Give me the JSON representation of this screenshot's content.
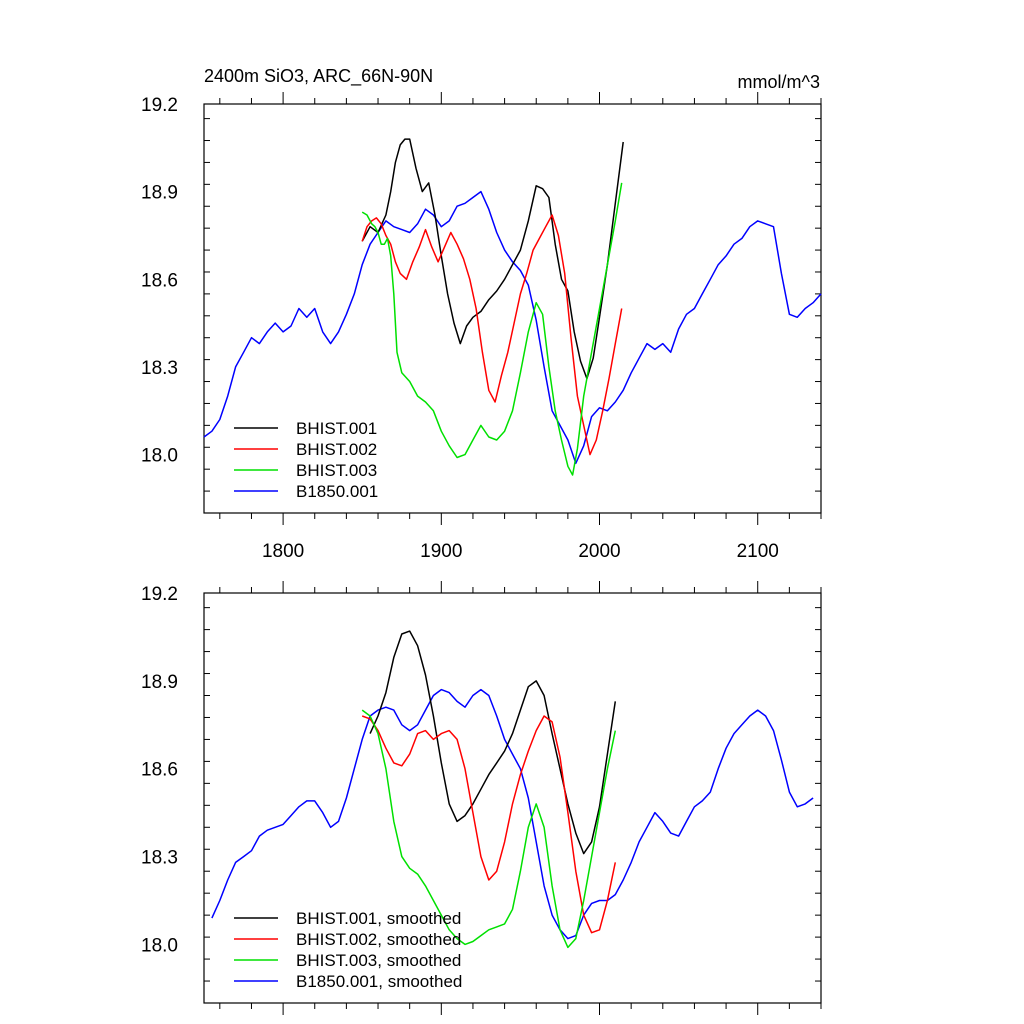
{
  "figure": {
    "title_left": "2400m SiO3, ARC_66N-90N",
    "title_right": "mmol/m^3"
  },
  "chart_data": [
    {
      "type": "line",
      "title": "2400m SiO3, ARC_66N-90N",
      "units": "mmol/m^3",
      "xlim": [
        1750,
        2140
      ],
      "ylim": [
        17.8,
        19.2
      ],
      "x_ticks": [
        1800,
        1900,
        2000,
        2100
      ],
      "x_tick_labels": [
        "1800",
        "1900",
        "2000",
        "2100"
      ],
      "y_ticks": [
        18.0,
        18.3,
        18.6,
        18.9,
        19.2
      ],
      "y_tick_labels": [
        "18.0",
        "18.3",
        "18.6",
        "18.9",
        "19.2"
      ],
      "legend_position": "bottom-left",
      "series": [
        {
          "name": "BHIST.001",
          "color": "#000000",
          "x": [
            1850,
            1855,
            1860,
            1865,
            1868,
            1871,
            1874,
            1877,
            1880,
            1884,
            1888,
            1892,
            1896,
            1900,
            1904,
            1908,
            1912,
            1916,
            1920,
            1925,
            1930,
            1935,
            1940,
            1945,
            1950,
            1955,
            1960,
            1964,
            1968,
            1972,
            1976,
            1980,
            1984,
            1988,
            1992,
            1996,
            2000,
            2005,
            2010,
            2015
          ],
          "y": [
            18.73,
            18.78,
            18.76,
            18.82,
            18.9,
            19.0,
            19.06,
            19.08,
            19.08,
            18.98,
            18.9,
            18.93,
            18.82,
            18.68,
            18.55,
            18.45,
            18.38,
            18.44,
            18.47,
            18.49,
            18.53,
            18.56,
            18.6,
            18.65,
            18.7,
            18.8,
            18.92,
            18.91,
            18.88,
            18.72,
            18.6,
            18.56,
            18.42,
            18.32,
            18.26,
            18.33,
            18.47,
            18.65,
            18.86,
            19.07
          ]
        },
        {
          "name": "BHIST.002",
          "color": "#ff0000",
          "x": [
            1850,
            1853,
            1856,
            1859,
            1862,
            1865,
            1868,
            1871,
            1874,
            1878,
            1882,
            1886,
            1890,
            1894,
            1898,
            1902,
            1906,
            1910,
            1914,
            1918,
            1922,
            1926,
            1930,
            1934,
            1938,
            1942,
            1946,
            1950,
            1954,
            1958,
            1962,
            1966,
            1970,
            1974,
            1978,
            1982,
            1986,
            1990,
            1994,
            1998,
            2002,
            2006,
            2010,
            2014
          ],
          "y": [
            18.73,
            18.78,
            18.8,
            18.81,
            18.79,
            18.75,
            18.72,
            18.66,
            18.62,
            18.6,
            18.66,
            18.71,
            18.77,
            18.71,
            18.66,
            18.71,
            18.76,
            18.72,
            18.67,
            18.6,
            18.5,
            18.35,
            18.22,
            18.18,
            18.27,
            18.35,
            18.45,
            18.55,
            18.62,
            18.7,
            18.74,
            18.78,
            18.82,
            18.75,
            18.62,
            18.4,
            18.2,
            18.1,
            18.0,
            18.05,
            18.15,
            18.26,
            18.38,
            18.5
          ]
        },
        {
          "name": "BHIST.003",
          "color": "#00e000",
          "x": [
            1850,
            1853,
            1856,
            1858,
            1860,
            1862,
            1864,
            1866,
            1868,
            1870,
            1872,
            1875,
            1880,
            1885,
            1890,
            1895,
            1900,
            1905,
            1910,
            1915,
            1920,
            1925,
            1930,
            1935,
            1940,
            1945,
            1950,
            1955,
            1960,
            1964,
            1968,
            1972,
            1976,
            1980,
            1983,
            1986,
            1990,
            1995,
            2000,
            2005,
            2010,
            2014
          ],
          "y": [
            18.83,
            18.82,
            18.79,
            18.78,
            18.76,
            18.72,
            18.72,
            18.74,
            18.68,
            18.55,
            18.35,
            18.28,
            18.25,
            18.2,
            18.18,
            18.15,
            18.08,
            18.03,
            17.99,
            18.0,
            18.05,
            18.1,
            18.06,
            18.05,
            18.08,
            18.15,
            18.28,
            18.42,
            18.52,
            18.48,
            18.3,
            18.15,
            18.05,
            17.96,
            17.93,
            18.02,
            18.2,
            18.35,
            18.5,
            18.65,
            18.8,
            18.93
          ]
        },
        {
          "name": "B1850.001",
          "color": "#0000ff",
          "x": [
            1750,
            1755,
            1760,
            1765,
            1770,
            1775,
            1780,
            1785,
            1790,
            1795,
            1800,
            1805,
            1810,
            1815,
            1820,
            1825,
            1830,
            1835,
            1840,
            1845,
            1850,
            1855,
            1860,
            1865,
            1870,
            1875,
            1880,
            1885,
            1890,
            1895,
            1900,
            1905,
            1910,
            1915,
            1920,
            1925,
            1930,
            1935,
            1940,
            1945,
            1950,
            1955,
            1960,
            1965,
            1970,
            1975,
            1980,
            1985,
            1990,
            1995,
            2000,
            2005,
            2010,
            2015,
            2020,
            2025,
            2030,
            2035,
            2040,
            2045,
            2050,
            2055,
            2060,
            2065,
            2070,
            2075,
            2080,
            2085,
            2090,
            2095,
            2100,
            2105,
            2110,
            2115,
            2120,
            2125,
            2130,
            2135,
            2140
          ],
          "y": [
            18.06,
            18.08,
            18.12,
            18.2,
            18.3,
            18.35,
            18.4,
            18.38,
            18.42,
            18.45,
            18.42,
            18.44,
            18.5,
            18.47,
            18.5,
            18.42,
            18.38,
            18.42,
            18.48,
            18.55,
            18.65,
            18.72,
            18.76,
            18.8,
            18.78,
            18.77,
            18.76,
            18.79,
            18.84,
            18.82,
            18.78,
            18.8,
            18.85,
            18.86,
            18.88,
            18.9,
            18.84,
            18.76,
            18.7,
            18.66,
            18.63,
            18.58,
            18.46,
            18.3,
            18.15,
            18.1,
            18.05,
            17.97,
            18.03,
            18.13,
            18.16,
            18.15,
            18.18,
            18.22,
            18.28,
            18.33,
            18.38,
            18.36,
            18.38,
            18.35,
            18.43,
            18.48,
            18.5,
            18.55,
            18.6,
            18.65,
            18.68,
            18.72,
            18.74,
            18.78,
            18.8,
            18.79,
            18.78,
            18.62,
            18.48,
            18.47,
            18.5,
            18.52,
            18.55
          ]
        }
      ]
    },
    {
      "type": "line",
      "xlim": [
        1750,
        2140
      ],
      "ylim": [
        17.8,
        19.2
      ],
      "x_ticks": [
        1800,
        1900,
        2000,
        2100
      ],
      "y_ticks": [
        18.0,
        18.3,
        18.6,
        18.9,
        19.2
      ],
      "y_tick_labels": [
        "18.0",
        "18.3",
        "18.6",
        "18.9",
        "19.2"
      ],
      "legend_position": "bottom-left",
      "series": [
        {
          "name": "BHIST.001, smoothed",
          "color": "#000000",
          "x": [
            1855,
            1860,
            1865,
            1870,
            1875,
            1880,
            1885,
            1890,
            1895,
            1900,
            1905,
            1910,
            1915,
            1920,
            1925,
            1930,
            1935,
            1940,
            1945,
            1950,
            1955,
            1960,
            1965,
            1970,
            1975,
            1980,
            1985,
            1990,
            1995,
            2000,
            2005,
            2010
          ],
          "y": [
            18.72,
            18.78,
            18.86,
            18.98,
            19.06,
            19.07,
            19.02,
            18.92,
            18.78,
            18.62,
            18.48,
            18.42,
            18.44,
            18.48,
            18.53,
            18.58,
            18.62,
            18.66,
            18.72,
            18.8,
            18.88,
            18.9,
            18.85,
            18.72,
            18.6,
            18.48,
            18.38,
            18.31,
            18.35,
            18.47,
            18.65,
            18.83
          ]
        },
        {
          "name": "BHIST.002, smoothed",
          "color": "#ff0000",
          "x": [
            1850,
            1855,
            1860,
            1865,
            1870,
            1875,
            1880,
            1885,
            1890,
            1895,
            1900,
            1905,
            1910,
            1915,
            1920,
            1925,
            1930,
            1935,
            1940,
            1945,
            1950,
            1955,
            1960,
            1965,
            1970,
            1975,
            1980,
            1985,
            1990,
            1995,
            2000,
            2005,
            2010
          ],
          "y": [
            18.78,
            18.77,
            18.73,
            18.67,
            18.62,
            18.61,
            18.65,
            18.72,
            18.73,
            18.7,
            18.72,
            18.73,
            18.7,
            18.6,
            18.45,
            18.3,
            18.22,
            18.25,
            18.35,
            18.48,
            18.58,
            18.66,
            18.73,
            18.78,
            18.76,
            18.64,
            18.45,
            18.25,
            18.1,
            18.04,
            18.05,
            18.15,
            18.28
          ]
        },
        {
          "name": "BHIST.003, smoothed",
          "color": "#00e000",
          "x": [
            1850,
            1855,
            1860,
            1865,
            1870,
            1875,
            1880,
            1885,
            1890,
            1895,
            1900,
            1905,
            1910,
            1915,
            1920,
            1925,
            1930,
            1935,
            1940,
            1945,
            1950,
            1955,
            1960,
            1965,
            1970,
            1975,
            1980,
            1985,
            1990,
            1995,
            2000,
            2005,
            2010
          ],
          "y": [
            18.8,
            18.78,
            18.72,
            18.6,
            18.42,
            18.3,
            18.26,
            18.24,
            18.2,
            18.15,
            18.1,
            18.05,
            18.02,
            18.0,
            18.01,
            18.03,
            18.05,
            18.06,
            18.07,
            18.12,
            18.25,
            18.4,
            18.48,
            18.4,
            18.2,
            18.05,
            17.99,
            18.02,
            18.15,
            18.3,
            18.45,
            18.6,
            18.73
          ]
        },
        {
          "name": "B1850.001, smoothed",
          "color": "#0000ff",
          "x": [
            1755,
            1760,
            1765,
            1770,
            1775,
            1780,
            1785,
            1790,
            1795,
            1800,
            1805,
            1810,
            1815,
            1820,
            1825,
            1830,
            1835,
            1840,
            1845,
            1850,
            1855,
            1860,
            1865,
            1870,
            1875,
            1880,
            1885,
            1890,
            1895,
            1900,
            1905,
            1910,
            1915,
            1920,
            1925,
            1930,
            1935,
            1940,
            1945,
            1950,
            1955,
            1960,
            1965,
            1970,
            1975,
            1980,
            1985,
            1990,
            1995,
            2000,
            2005,
            2010,
            2015,
            2020,
            2025,
            2030,
            2035,
            2040,
            2045,
            2050,
            2055,
            2060,
            2065,
            2070,
            2075,
            2080,
            2085,
            2090,
            2095,
            2100,
            2105,
            2110,
            2115,
            2120,
            2125,
            2130,
            2135
          ],
          "y": [
            18.09,
            18.15,
            18.22,
            18.28,
            18.3,
            18.32,
            18.37,
            18.39,
            18.4,
            18.41,
            18.44,
            18.47,
            18.49,
            18.49,
            18.45,
            18.4,
            18.42,
            18.5,
            18.6,
            18.7,
            18.78,
            18.8,
            18.81,
            18.8,
            18.75,
            18.73,
            18.75,
            18.8,
            18.85,
            18.87,
            18.86,
            18.83,
            18.81,
            18.85,
            18.87,
            18.85,
            18.78,
            18.7,
            18.65,
            18.6,
            18.5,
            18.35,
            18.2,
            18.1,
            18.05,
            18.02,
            18.03,
            18.1,
            18.14,
            18.15,
            18.15,
            18.17,
            18.22,
            18.28,
            18.35,
            18.4,
            18.45,
            18.42,
            18.38,
            18.37,
            18.42,
            18.47,
            18.49,
            18.52,
            18.6,
            18.67,
            18.72,
            18.75,
            18.78,
            18.8,
            18.78,
            18.73,
            18.63,
            18.52,
            18.47,
            18.48,
            18.5
          ]
        }
      ]
    }
  ]
}
